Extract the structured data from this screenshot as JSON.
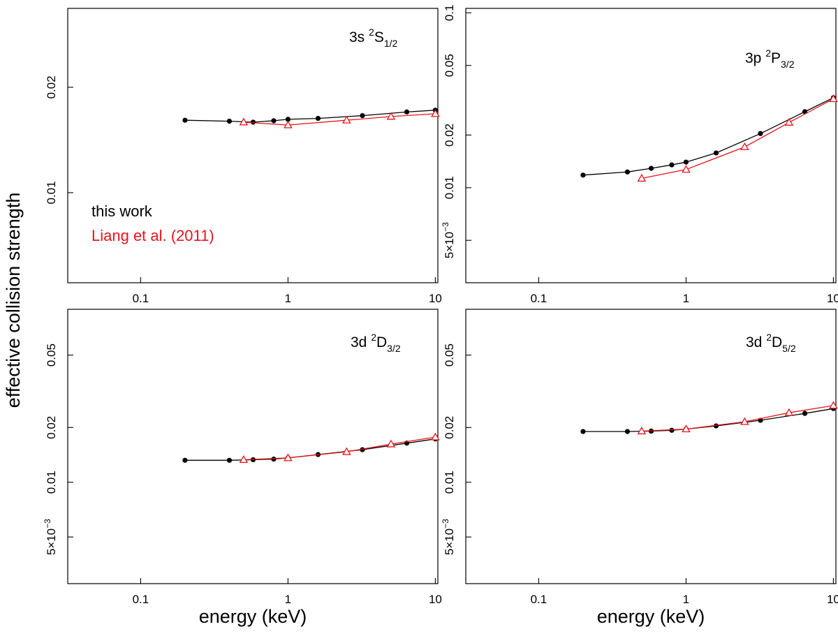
{
  "chart_data": {
    "type": "line",
    "scale": {
      "x": "log",
      "y": "log"
    },
    "y_title": "effective collision strength",
    "x_title": "energy (keV)",
    "colors": {
      "this_work": "#000000",
      "liang": "#e8141b"
    },
    "legend": {
      "placement": "bottom-left",
      "panel": 0,
      "entries": [
        "this work",
        "Liang et al. (2011)"
      ]
    },
    "x_ticks": [
      {
        "value": 0.1,
        "label": "0.1"
      },
      {
        "value": 1,
        "label": "1"
      },
      {
        "value": 10,
        "label": "10"
      }
    ],
    "panels": [
      {
        "id": "3s-2S1/2",
        "label": {
          "base": "3s ",
          "sup": "2",
          "term": "S",
          "sub": "1/2"
        },
        "xlim": [
          0.032,
          10.4
        ],
        "ylim": [
          0.00553,
          0.0336
        ],
        "x_labels_shown": true,
        "y_ticks": [
          {
            "value": 0.01,
            "label": "0.01"
          },
          {
            "value": 0.02,
            "label": "0.02"
          }
        ],
        "series": [
          {
            "name": "this work",
            "marker": "circle",
            "x": [
              0.2,
              0.4,
              0.58,
              0.8,
              1.0,
              1.6,
              3.2,
              6.4,
              10.0
            ],
            "y": [
              0.0161,
              0.016,
              0.0159,
              0.01605,
              0.0162,
              0.0163,
              0.0166,
              0.017,
              0.0172
            ]
          },
          {
            "name": "Liang et al. (2011)",
            "marker": "triangle",
            "x": [
              0.5,
              1.0,
              2.5,
              5.0,
              10.0
            ],
            "y": [
              0.0159,
              0.0156,
              0.0161,
              0.0165,
              0.0168
            ]
          }
        ]
      },
      {
        "id": "3p-2P3/2",
        "label": {
          "base": "3p ",
          "sup": "2",
          "term": "P",
          "sub": "3/2"
        },
        "xlim": [
          0.032,
          10.4
        ],
        "ylim": [
          0.00286,
          0.106
        ],
        "x_labels_shown": true,
        "y_ticks": [
          {
            "value": 0.005,
            "label": "5×10",
            "exp": "−3"
          },
          {
            "value": 0.01,
            "label": "0.01"
          },
          {
            "value": 0.02,
            "label": "0.02"
          },
          {
            "value": 0.05,
            "label": "0.05"
          },
          {
            "value": 0.1,
            "label": "0.1"
          }
        ],
        "series": [
          {
            "name": "this work",
            "marker": "circle",
            "x": [
              0.2,
              0.4,
              0.58,
              0.8,
              1.0,
              1.6,
              3.2,
              6.4,
              10.0
            ],
            "y": [
              0.0118,
              0.0123,
              0.0129,
              0.0135,
              0.014,
              0.0158,
              0.0204,
              0.0272,
              0.0327
            ]
          },
          {
            "name": "Liang et al. (2011)",
            "marker": "triangle",
            "x": [
              0.5,
              1.0,
              2.5,
              5.0,
              10.0
            ],
            "y": [
              0.0113,
              0.0127,
              0.0171,
              0.0236,
              0.0322
            ]
          }
        ]
      },
      {
        "id": "3d-2D3/2",
        "label": {
          "base": "3d ",
          "sup": "2",
          "term": "D",
          "sub": "3/2"
        },
        "xlim": [
          0.032,
          10.4
        ],
        "ylim": [
          0.00277,
          0.0893
        ],
        "x_labels_shown": true,
        "y_ticks": [
          {
            "value": 0.005,
            "label": "5×10",
            "exp": "−3"
          },
          {
            "value": 0.01,
            "label": "0.01"
          },
          {
            "value": 0.02,
            "label": "0.02"
          },
          {
            "value": 0.05,
            "label": "0.05"
          }
        ],
        "series": [
          {
            "name": "this work",
            "marker": "circle",
            "x": [
              0.2,
              0.4,
              0.58,
              0.8,
              1.0,
              1.6,
              3.2,
              6.4,
              10.0
            ],
            "y": [
              0.0132,
              0.0132,
              0.0133,
              0.0134,
              0.0136,
              0.0142,
              0.0151,
              0.0164,
              0.0173
            ]
          },
          {
            "name": "Liang et al. (2011)",
            "marker": "triangle",
            "x": [
              0.5,
              1.0,
              2.5,
              5.0,
              10.0
            ],
            "y": [
              0.0133,
              0.0136,
              0.0147,
              0.0162,
              0.0177
            ]
          }
        ]
      },
      {
        "id": "3d-2D5/2",
        "label": {
          "base": "3d ",
          "sup": "2",
          "term": "D",
          "sub": "5/2"
        },
        "xlim": [
          0.032,
          10.4
        ],
        "ylim": [
          0.00277,
          0.0893
        ],
        "x_labels_shown": true,
        "y_ticks": [
          {
            "value": 0.005,
            "label": "5×10",
            "exp": "−3"
          },
          {
            "value": 0.01,
            "label": "0.01"
          },
          {
            "value": 0.02,
            "label": "0.02"
          },
          {
            "value": 0.05,
            "label": "0.05"
          }
        ],
        "series": [
          {
            "name": "this work",
            "marker": "circle",
            "x": [
              0.2,
              0.4,
              0.58,
              0.8,
              1.0,
              1.6,
              3.2,
              6.4,
              10.0
            ],
            "y": [
              0.019,
              0.019,
              0.0191,
              0.0193,
              0.0196,
              0.0204,
              0.0219,
              0.0239,
              0.0254
            ]
          },
          {
            "name": "Liang et al. (2011)",
            "marker": "triangle",
            "x": [
              0.5,
              1.0,
              2.5,
              5.0,
              10.0
            ],
            "y": [
              0.0191,
              0.0196,
              0.0215,
              0.0241,
              0.0264
            ]
          }
        ]
      }
    ]
  }
}
